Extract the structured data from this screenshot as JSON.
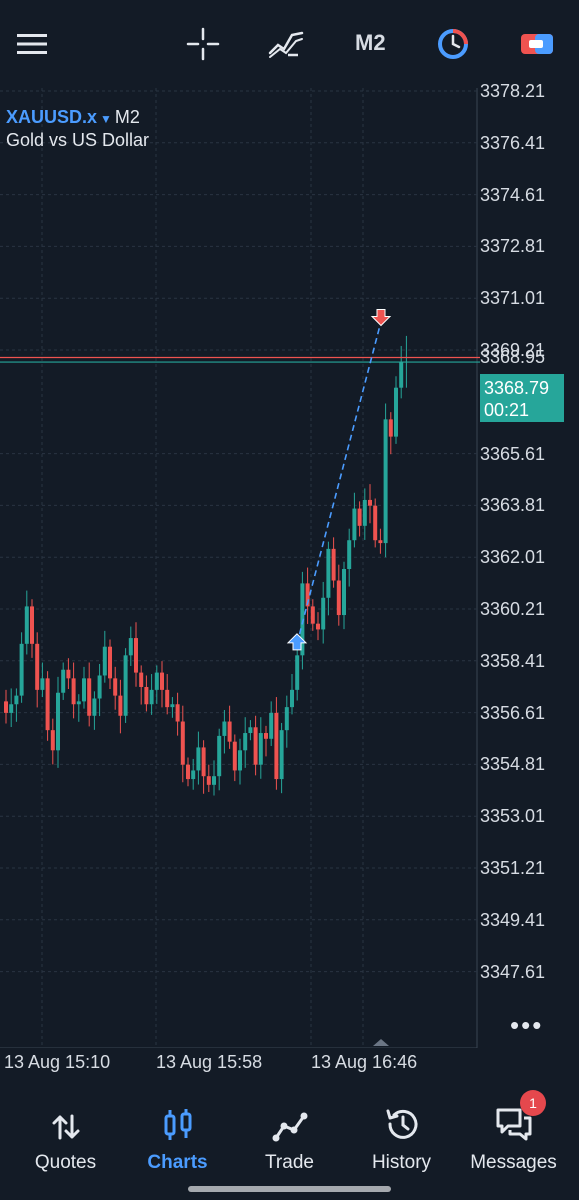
{
  "topbar": {
    "menu_icon": "hamburger-menu-icon",
    "crosshair_icon": "crosshair-icon",
    "indicators_icon": "indicators-icon",
    "timeframe": "M2",
    "timer_icon": "one-click-timer-icon",
    "trade_icon": "trade-panel-icon"
  },
  "chart": {
    "symbol": "XAUUSD.x",
    "timeframe": "M2",
    "description": "Gold vs US Dollar",
    "price_levels": [
      "3378.21",
      "3376.41",
      "3374.61",
      "3372.81",
      "3371.01",
      "3369.21",
      "3368.95",
      "3365.61",
      "3363.81",
      "3362.01",
      "3360.21",
      "3358.41",
      "3356.61",
      "3354.81",
      "3353.01",
      "3351.21",
      "3349.41",
      "3347.61"
    ],
    "current_price": "3368.79",
    "countdown": "00:21",
    "time_labels": [
      "13 Aug 15:10",
      "13 Aug 15:58",
      "13 Aug 16:46"
    ],
    "more_label": "•••",
    "colors": {
      "bull": "#26a69a",
      "bear": "#ef5350",
      "bid_line": "#ef5350",
      "ask_line": "#26a69a",
      "trade_line": "#4b9cff"
    }
  },
  "nav": {
    "items": [
      {
        "label": "Quotes",
        "icon": "quotes-arrows-icon"
      },
      {
        "label": "Charts",
        "icon": "charts-candles-icon",
        "active": true
      },
      {
        "label": "Trade",
        "icon": "trade-graph-icon"
      },
      {
        "label": "History",
        "icon": "history-clock-icon"
      },
      {
        "label": "Messages",
        "icon": "messages-chat-icon",
        "badge": "1"
      }
    ]
  }
}
